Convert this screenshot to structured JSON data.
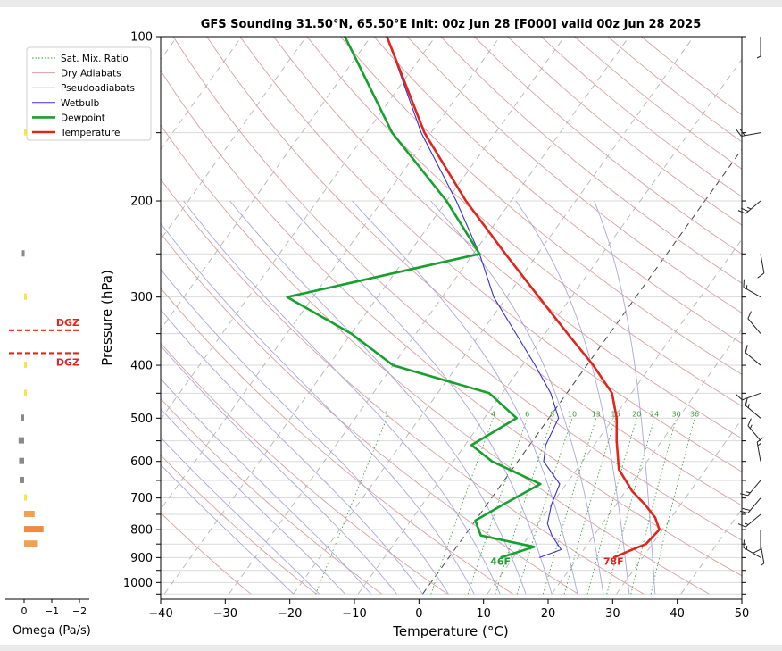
{
  "chart_data": {
    "type": "line",
    "title": "GFS Sounding 31.50°N, 65.50°E Init: 00z Jun 28 [F000] valid 00z Jun 28 2025",
    "xlabel": "Temperature (°C)",
    "ylabel": "Pressure (hPa)",
    "xlim": [
      -40,
      50
    ],
    "ylim": [
      1050,
      100
    ],
    "y_scale": "log",
    "x_ticks": [
      "−40",
      "−30",
      "−20",
      "−10",
      "0",
      "10",
      "20",
      "30",
      "40",
      "50"
    ],
    "y_ticks": [
      "100",
      "200",
      "300",
      "400",
      "500",
      "600",
      "700",
      "800",
      "900",
      "1000"
    ],
    "grid": true,
    "legend": {
      "position": "top-left",
      "entries": [
        {
          "label": "Sat. Mix. Ratio",
          "color": "#2e9b2e",
          "style": "dotted"
        },
        {
          "label": "Dry Adiabats",
          "color": "#d9a0a0",
          "style": "solid"
        },
        {
          "label": "Pseudoadiabats",
          "color": "#a8a8dc",
          "style": "solid"
        },
        {
          "label": "Wetbulb",
          "color": "#3a2fd0",
          "style": "solid"
        },
        {
          "label": "Dewpoint",
          "color": "#16a02e",
          "style": "solid-thick"
        },
        {
          "label": "Temperature",
          "color": "#e0261c",
          "style": "solid-thick"
        }
      ]
    },
    "series": [
      {
        "name": "Temperature",
        "points": [
          {
            "p": 900,
            "t": 25.5
          },
          {
            "p": 870,
            "t": 27.5
          },
          {
            "p": 850,
            "t": 29
          },
          {
            "p": 800,
            "t": 29.5
          },
          {
            "p": 760,
            "t": 27.5
          },
          {
            "p": 720,
            "t": 24.5
          },
          {
            "p": 680,
            "t": 21
          },
          {
            "p": 620,
            "t": 16.5
          },
          {
            "p": 550,
            "t": 13
          },
          {
            "p": 500,
            "t": 10.5
          },
          {
            "p": 450,
            "t": 7
          },
          {
            "p": 400,
            "t": 1
          },
          {
            "p": 350,
            "t": -6.5
          },
          {
            "p": 300,
            "t": -15
          },
          {
            "p": 250,
            "t": -25
          },
          {
            "p": 200,
            "t": -37
          },
          {
            "p": 150,
            "t": -51
          },
          {
            "p": 100,
            "t": -67.5
          }
        ]
      },
      {
        "name": "Dewpoint",
        "points": [
          {
            "p": 900,
            "t": 8
          },
          {
            "p": 860,
            "t": 12
          },
          {
            "p": 820,
            "t": 2.5
          },
          {
            "p": 770,
            "t": 0
          },
          {
            "p": 720,
            "t": 2.5
          },
          {
            "p": 660,
            "t": 6
          },
          {
            "p": 600,
            "t": -4
          },
          {
            "p": 560,
            "t": -9
          },
          {
            "p": 500,
            "t": -5
          },
          {
            "p": 450,
            "t": -12
          },
          {
            "p": 400,
            "t": -30
          },
          {
            "p": 350,
            "t": -40
          },
          {
            "p": 300,
            "t": -54
          },
          {
            "p": 250,
            "t": -29
          },
          {
            "p": 200,
            "t": -40
          },
          {
            "p": 150,
            "t": -56
          },
          {
            "p": 100,
            "t": -74
          }
        ]
      },
      {
        "name": "Wetbulb",
        "points": [
          {
            "p": 900,
            "t": 14
          },
          {
            "p": 870,
            "t": 16.5
          },
          {
            "p": 820,
            "t": 13.5
          },
          {
            "p": 780,
            "t": 11.5
          },
          {
            "p": 720,
            "t": 10
          },
          {
            "p": 660,
            "t": 9
          },
          {
            "p": 600,
            "t": 4
          },
          {
            "p": 560,
            "t": 2.5
          },
          {
            "p": 500,
            "t": 1.5
          },
          {
            "p": 450,
            "t": -2.5
          },
          {
            "p": 400,
            "t": -8
          },
          {
            "p": 350,
            "t": -14.5
          },
          {
            "p": 300,
            "t": -22
          },
          {
            "p": 250,
            "t": -29
          },
          {
            "p": 200,
            "t": -38.5
          },
          {
            "p": 150,
            "t": -51.5
          },
          {
            "p": 100,
            "t": -67.5
          }
        ]
      }
    ],
    "surface_labels": [
      {
        "text": "46F",
        "color": "#16a02e"
      },
      {
        "text": "78F",
        "color": "#e0261c"
      }
    ],
    "mixing_ratio_labels": [
      "1",
      "4",
      "6",
      "8",
      "10",
      "13",
      "16",
      "20",
      "24",
      "30",
      "36"
    ],
    "mixing_ratios": [
      1,
      4,
      6,
      8,
      10,
      13,
      16,
      20,
      24,
      30,
      36
    ],
    "omega": {
      "xlabel": "Omega (Pa/s)",
      "x_ticks": [
        "0",
        "−1",
        "−2"
      ],
      "xlim": [
        0.4,
        -2
      ],
      "bars": [
        {
          "p": 150,
          "value": -0.05,
          "color": "#f5e642"
        },
        {
          "p": 250,
          "value": 0.08,
          "color": "#8a8a8a"
        },
        {
          "p": 300,
          "value": -0.05,
          "color": "#f5e642"
        },
        {
          "p": 400,
          "value": -0.1,
          "color": "#f5e642"
        },
        {
          "p": 450,
          "value": -0.03,
          "color": "#f5e642"
        },
        {
          "p": 500,
          "value": 0.12,
          "color": "#8a8a8a"
        },
        {
          "p": 550,
          "value": 0.2,
          "color": "#8a8a8a"
        },
        {
          "p": 600,
          "value": 0.18,
          "color": "#8a8a8a"
        },
        {
          "p": 650,
          "value": 0.16,
          "color": "#8a8a8a"
        },
        {
          "p": 700,
          "value": -0.04,
          "color": "#f5e642"
        },
        {
          "p": 750,
          "value": -0.38,
          "color": "#f0a050"
        },
        {
          "p": 800,
          "value": -0.7,
          "color": "#f08a40"
        },
        {
          "p": 850,
          "value": -0.5,
          "color": "#f0a050"
        }
      ],
      "dgz": {
        "label": "DGZ",
        "top_p": 380,
        "bottom_p": 345
      }
    },
    "wind_barbs": [
      {
        "p": 100,
        "dir": 180,
        "kt": 5
      },
      {
        "p": 150,
        "dir": 260,
        "kt": 20
      },
      {
        "p": 200,
        "dir": 230,
        "kt": 25
      },
      {
        "p": 250,
        "dir": 170,
        "kt": 10
      },
      {
        "p": 300,
        "dir": 300,
        "kt": 15
      },
      {
        "p": 350,
        "dir": 320,
        "kt": 10
      },
      {
        "p": 400,
        "dir": 310,
        "kt": 10
      },
      {
        "p": 450,
        "dir": 250,
        "kt": 10
      },
      {
        "p": 500,
        "dir": 310,
        "kt": 15
      },
      {
        "p": 550,
        "dir": 320,
        "kt": 15
      },
      {
        "p": 600,
        "dir": 350,
        "kt": 15
      },
      {
        "p": 650,
        "dir": 220,
        "kt": 15
      },
      {
        "p": 700,
        "dir": 220,
        "kt": 20
      },
      {
        "p": 750,
        "dir": 230,
        "kt": 15
      },
      {
        "p": 800,
        "dir": 180,
        "kt": 10
      },
      {
        "p": 850,
        "dir": 170,
        "kt": 5
      },
      {
        "p": 900,
        "dir": 300,
        "kt": 15
      }
    ]
  }
}
